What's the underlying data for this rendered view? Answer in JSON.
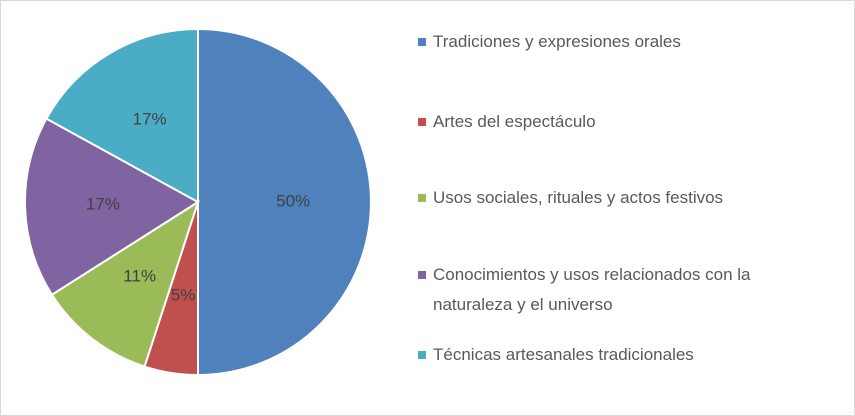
{
  "chart_data": {
    "type": "pie",
    "categories": [
      "Tradiciones y expresiones orales",
      "Artes del espectáculo",
      "Usos sociales, rituales y actos festivos",
      "Conocimientos y usos relacionados con la naturaleza y el universo",
      "Técnicas artesanales tradicionales"
    ],
    "values": [
      50,
      5,
      11,
      17,
      17
    ],
    "value_labels": [
      "50%",
      "5%",
      "11%",
      "17%",
      "17%"
    ],
    "colors": [
      "#4f81bd",
      "#c0504d",
      "#9bbb59",
      "#8064a2",
      "#4bacc6"
    ],
    "legend": "right"
  }
}
